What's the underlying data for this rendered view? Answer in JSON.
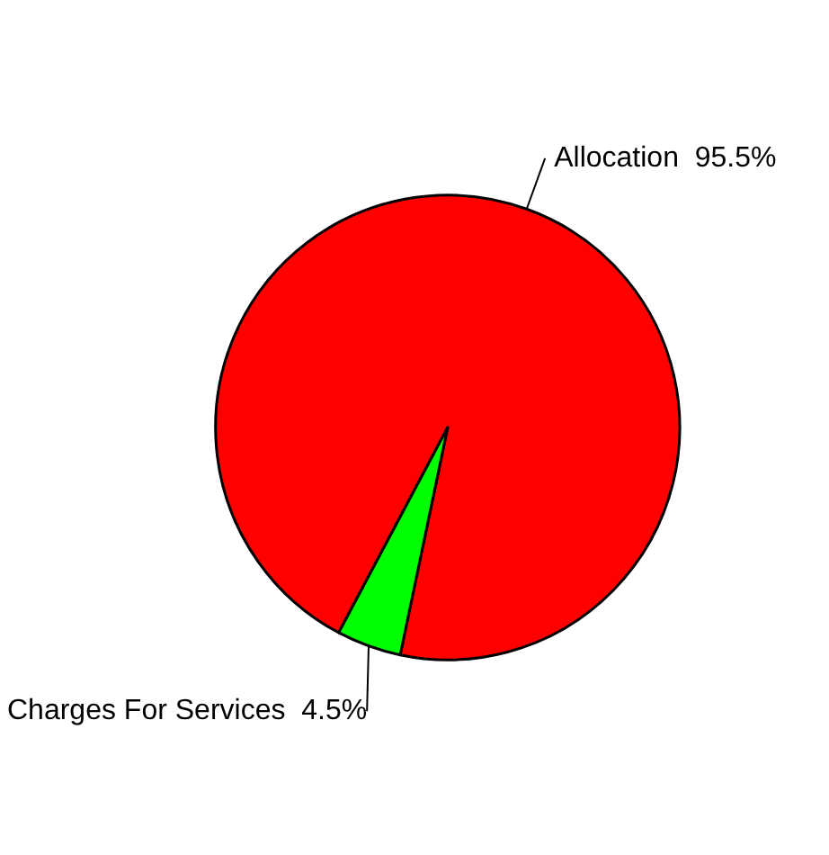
{
  "chart_data": {
    "type": "pie",
    "categories": [
      "Allocation",
      "Charges For Services"
    ],
    "values": [
      95.5,
      4.5
    ],
    "colors": [
      "#ff0000",
      "#00ff00"
    ],
    "value_labels": [
      "95.5%",
      "4.5%"
    ]
  }
}
